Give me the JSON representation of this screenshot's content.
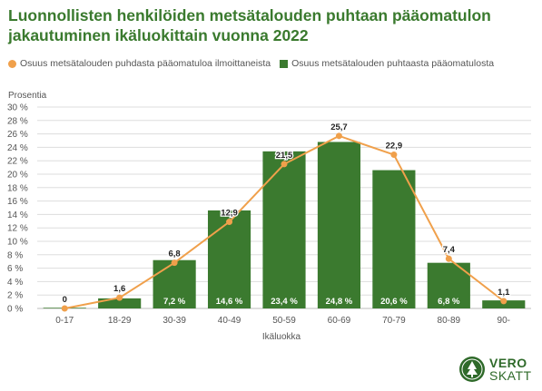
{
  "title": "Luonnollisten henkilöiden metsätalouden puhtaan pääomatulon jakautuminen ikäluokittain vuonna 2022",
  "legend": {
    "line_label": "Osuus metsätalouden puhdasta pääomatuloa ilmoittaneista",
    "bar_label": "Osuus metsätalouden puhtaasta pääomatulosta"
  },
  "ylabel": "Prosentia",
  "xlabel": "Ikäluokka",
  "colors": {
    "title": "#3a7a2e",
    "bar": "#3b7a2f",
    "line": "#f0a04b",
    "grid": "#dddddd"
  },
  "chart_data": {
    "type": "bar",
    "categories": [
      "0-17",
      "18-29",
      "30-39",
      "40-49",
      "50-59",
      "60-69",
      "70-79",
      "80-89",
      "90-"
    ],
    "series": [
      {
        "name": "Osuus metsätalouden puhtaasta pääomatulosta",
        "type": "bar",
        "values": [
          0.1,
          1.5,
          7.2,
          14.6,
          23.4,
          24.8,
          20.6,
          6.8,
          1.2
        ],
        "labels": [
          "",
          "",
          "7,2 %",
          "14,6 %",
          "23,4 %",
          "24,8 %",
          "20,6 %",
          "6,8 %",
          ""
        ]
      },
      {
        "name": "Osuus metsätalouden puhdasta pääomatuloa ilmoittaneista",
        "type": "line",
        "values": [
          0,
          1.6,
          6.8,
          12.9,
          21.5,
          25.7,
          22.9,
          7.4,
          1.1
        ],
        "labels": [
          "0",
          "1,6",
          "6,8",
          "12,9",
          "21,5",
          "25,7",
          "22,9",
          "7,4",
          "1,1"
        ]
      }
    ],
    "ylim": [
      0,
      30
    ],
    "yticks": [
      0,
      2,
      4,
      6,
      8,
      10,
      12,
      14,
      16,
      18,
      20,
      22,
      24,
      26,
      28,
      30
    ],
    "ytick_labels": [
      "0 %",
      "2 %",
      "4 %",
      "6 %",
      "8 %",
      "10 %",
      "12 %",
      "14 %",
      "16 %",
      "18 %",
      "20 %",
      "22 %",
      "24 %",
      "26 %",
      "28 %",
      "30 %"
    ],
    "grid": true,
    "legend_position": "top-left"
  },
  "logo": {
    "line1": "VERO",
    "line2": "SKATT"
  }
}
